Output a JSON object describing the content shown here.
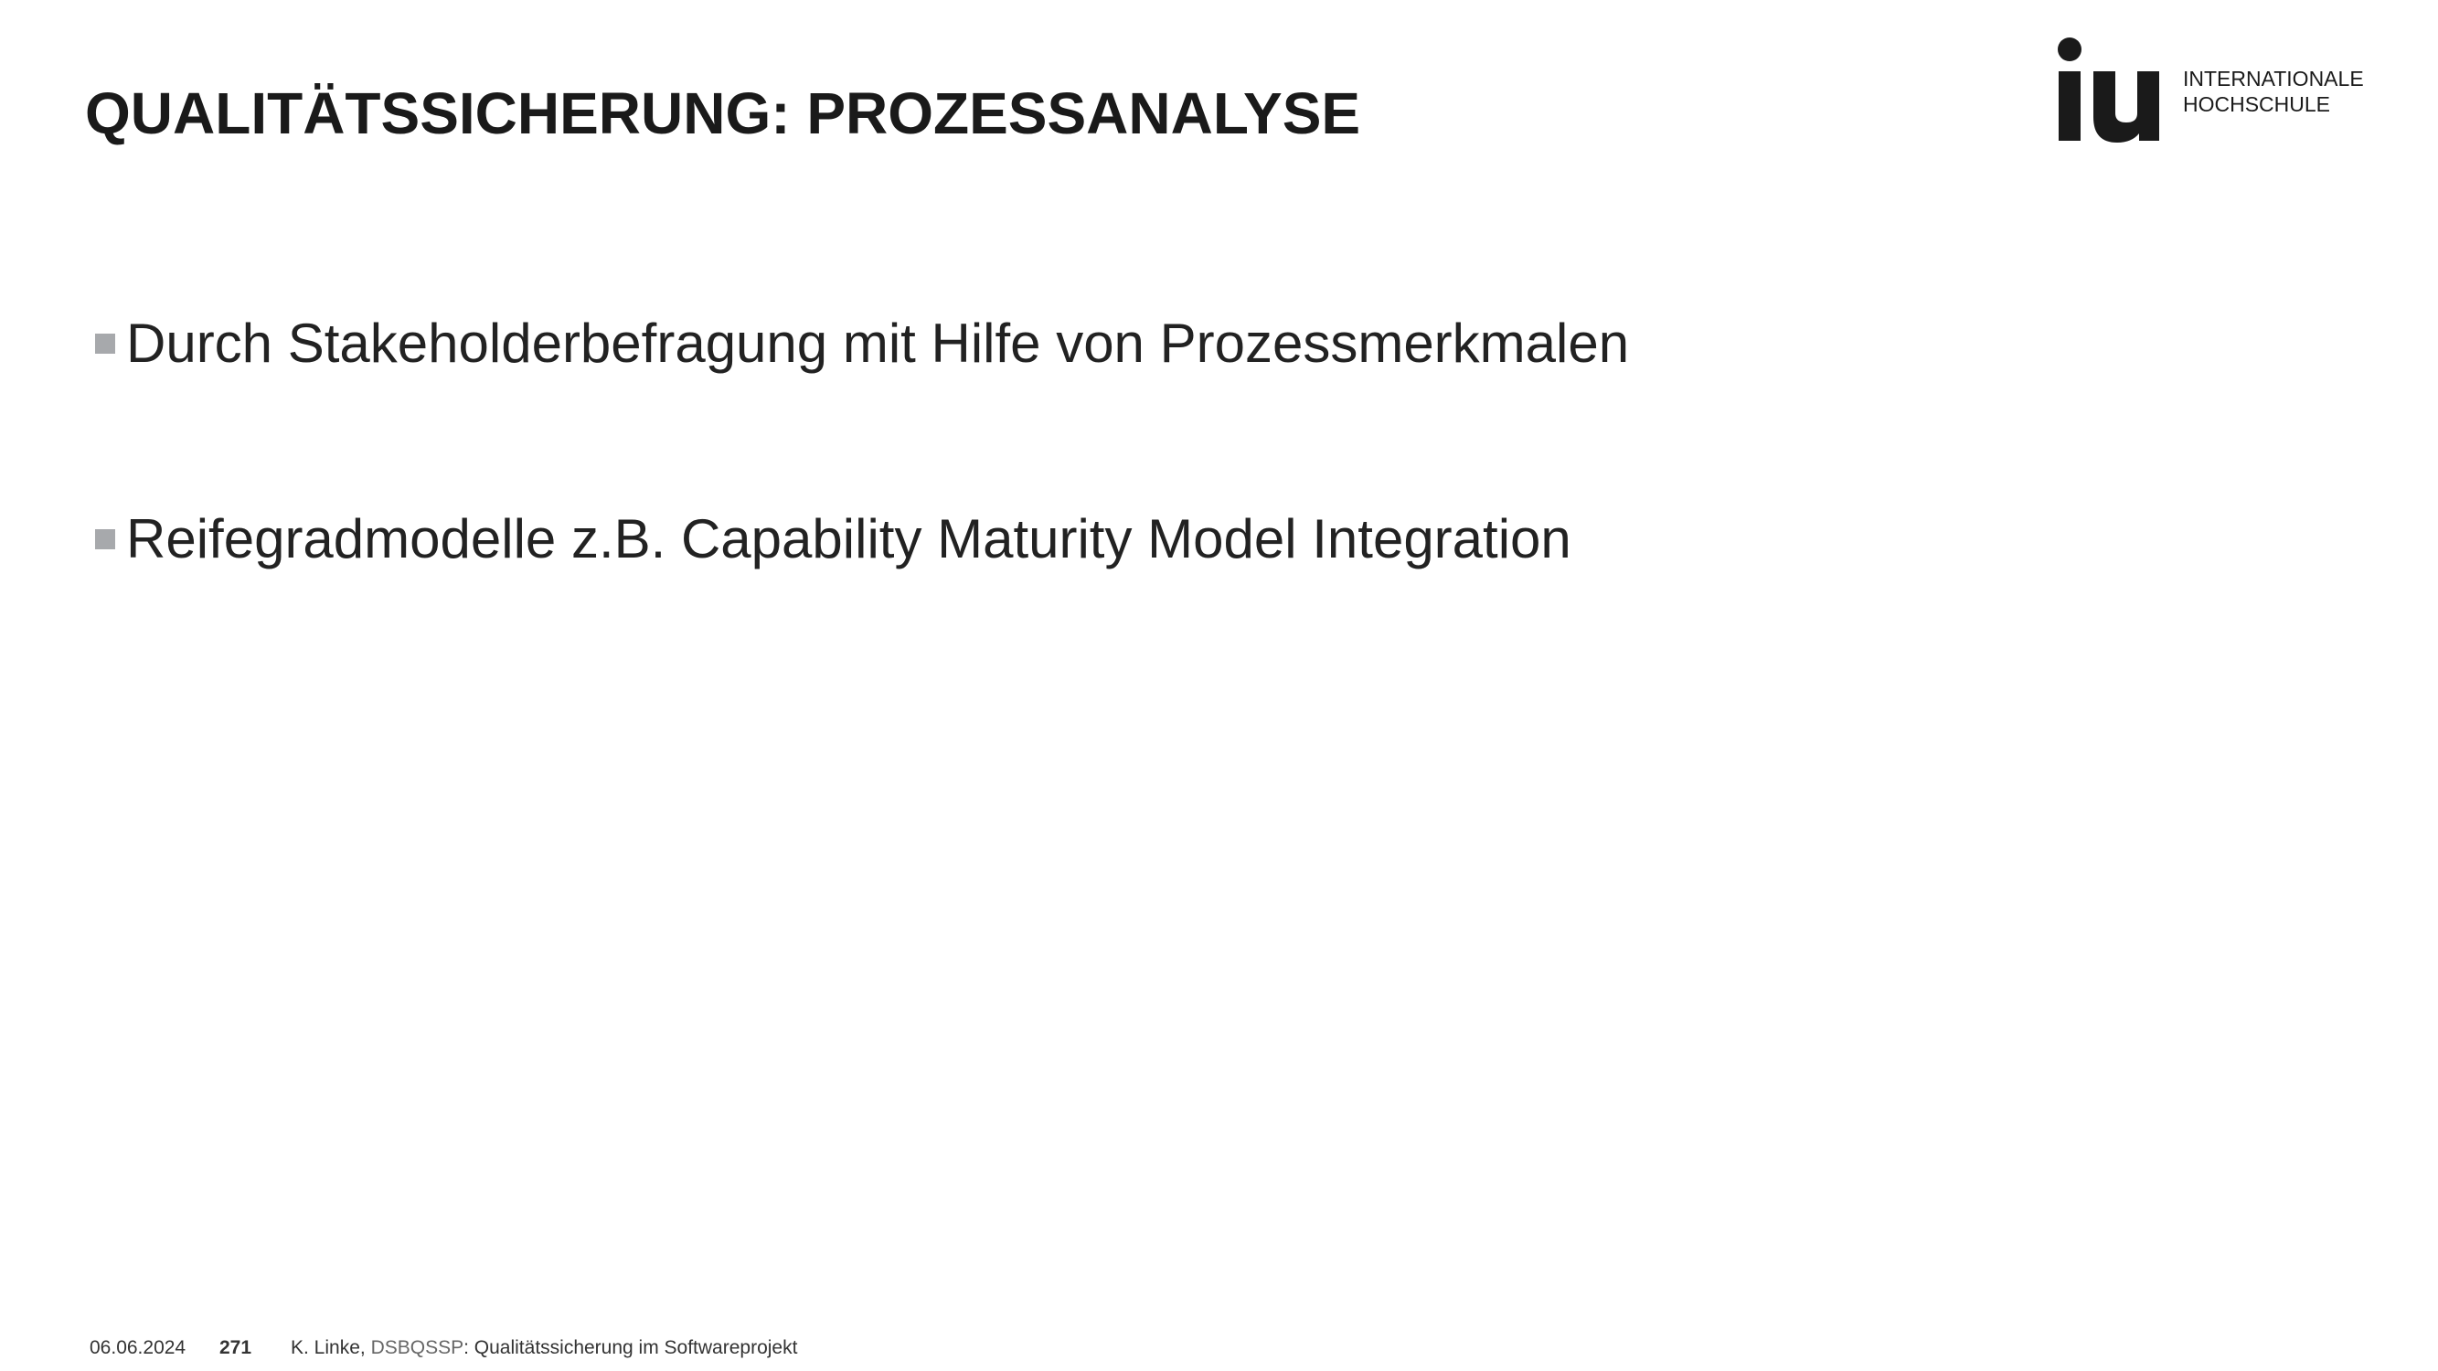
{
  "slide": {
    "title": "QUALITÄTSSICHERUNG: PROZESSANALYSE",
    "bullets": [
      "Durch Stakeholderbefragung mit Hilfe von Prozessmerkmalen",
      "Reifegradmodelle z.B. Capability Maturity Model Integration"
    ]
  },
  "logo": {
    "line1": "INTERNATIONALE",
    "line2": "HOCHSCHULE",
    "mark": "iu"
  },
  "footer": {
    "date": "06.06.2024",
    "page": "271",
    "author": "K. Linke,",
    "course_code": "DSBQSSP",
    "course_title": ": Qualitätssicherung im Softwareprojekt"
  },
  "colors": {
    "bullet": "#a7a9ac",
    "text": "#222222",
    "logo": "#1a1a1a"
  },
  "icons": [
    "iu-logo-icon",
    "bullet-square-icon"
  ]
}
